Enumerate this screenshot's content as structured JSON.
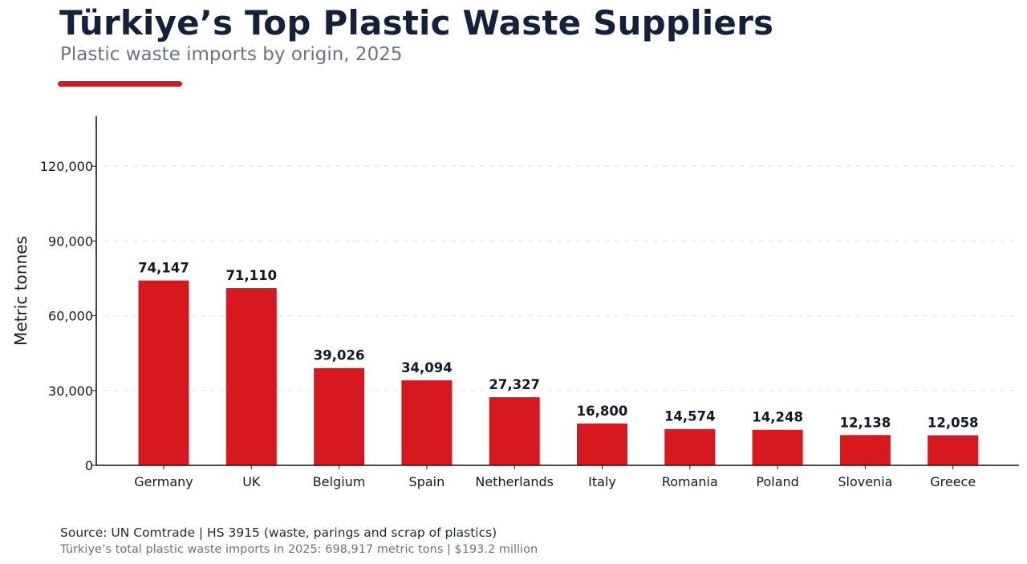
{
  "header": {
    "title": "Türkiye’s Top Plastic Waste Suppliers",
    "subtitle": "Plastic waste imports by origin, 2025"
  },
  "colors": {
    "bar": "#d7191f",
    "accent": "#d7191f",
    "title": "#14213d",
    "grid": "#e5e7eb",
    "axis": "#111111"
  },
  "chart_data": {
    "type": "bar",
    "categories": [
      "Germany",
      "UK",
      "Belgium",
      "Spain",
      "Netherlands",
      "Italy",
      "Romania",
      "Poland",
      "Slovenia",
      "Greece"
    ],
    "values": [
      74147,
      71110,
      39026,
      34094,
      27327,
      16800,
      14574,
      14248,
      12138,
      12058
    ],
    "value_labels": [
      "74,147",
      "71,110",
      "39,026",
      "34,094",
      "27,327",
      "16,800",
      "14,574",
      "14,248",
      "12,138",
      "12,058"
    ],
    "title": "Türkiye’s Top Plastic Waste Suppliers",
    "xlabel": "",
    "ylabel": "Metric tonnes",
    "ylim": [
      0,
      140000
    ],
    "yticks": [
      0,
      30000,
      60000,
      90000,
      120000
    ],
    "ytick_labels": [
      "0",
      "30,000",
      "60,000",
      "90,000",
      "120,000"
    ],
    "grid": "horizontal dashed",
    "legend": "none"
  },
  "footer": {
    "source": "Source: UN Comtrade | HS 3915 (waste, parings and scrap of plastics)",
    "note": "Türkiye’s total plastic waste imports in 2025: 698,917 metric tons | $193.2 million"
  }
}
